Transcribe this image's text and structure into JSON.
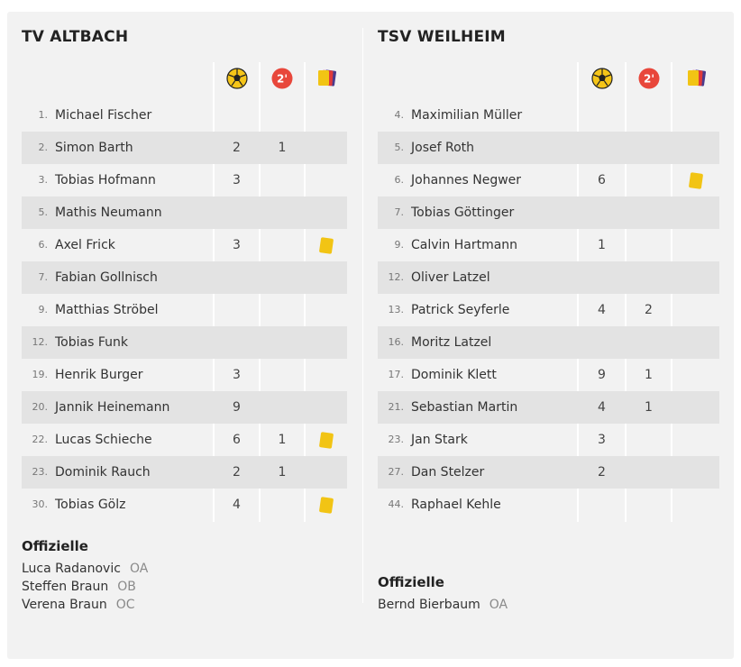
{
  "teams": [
    {
      "name": "TV ALTBACH",
      "players": [
        {
          "num": "1.",
          "name": "Michael Fischer",
          "goals": "",
          "two_min": "",
          "yellow": false
        },
        {
          "num": "2.",
          "name": "Simon Barth",
          "goals": "2",
          "two_min": "1",
          "yellow": false
        },
        {
          "num": "3.",
          "name": "Tobias Hofmann",
          "goals": "3",
          "two_min": "",
          "yellow": false
        },
        {
          "num": "5.",
          "name": "Mathis Neumann",
          "goals": "",
          "two_min": "",
          "yellow": false
        },
        {
          "num": "6.",
          "name": "Axel Frick",
          "goals": "3",
          "two_min": "",
          "yellow": true
        },
        {
          "num": "7.",
          "name": "Fabian Gollnisch",
          "goals": "",
          "two_min": "",
          "yellow": false
        },
        {
          "num": "9.",
          "name": "Matthias Ströbel",
          "goals": "",
          "two_min": "",
          "yellow": false
        },
        {
          "num": "12.",
          "name": "Tobias Funk",
          "goals": "",
          "two_min": "",
          "yellow": false
        },
        {
          "num": "19.",
          "name": "Henrik Burger",
          "goals": "3",
          "two_min": "",
          "yellow": false
        },
        {
          "num": "20.",
          "name": "Jannik Heinemann",
          "goals": "9",
          "two_min": "",
          "yellow": false
        },
        {
          "num": "22.",
          "name": "Lucas Schieche",
          "goals": "6",
          "two_min": "1",
          "yellow": true
        },
        {
          "num": "23.",
          "name": "Dominik Rauch",
          "goals": "2",
          "two_min": "1",
          "yellow": false
        },
        {
          "num": "30.",
          "name": "Tobias Gölz",
          "goals": "4",
          "two_min": "",
          "yellow": true
        }
      ],
      "officials_title": "Offizielle",
      "officials": [
        {
          "name": "Luca Radanovic",
          "role": "OA"
        },
        {
          "name": "Steffen Braun",
          "role": "OB"
        },
        {
          "name": "Verena Braun",
          "role": "OC"
        }
      ]
    },
    {
      "name": "TSV WEILHEIM",
      "players": [
        {
          "num": "4.",
          "name": "Maximilian Müller",
          "goals": "",
          "two_min": "",
          "yellow": false
        },
        {
          "num": "5.",
          "name": "Josef Roth",
          "goals": "",
          "two_min": "",
          "yellow": false
        },
        {
          "num": "6.",
          "name": "Johannes Negwer",
          "goals": "6",
          "two_min": "",
          "yellow": true
        },
        {
          "num": "7.",
          "name": "Tobias Göttinger",
          "goals": "",
          "two_min": "",
          "yellow": false
        },
        {
          "num": "9.",
          "name": "Calvin Hartmann",
          "goals": "1",
          "two_min": "",
          "yellow": false
        },
        {
          "num": "12.",
          "name": "Oliver Latzel",
          "goals": "",
          "two_min": "",
          "yellow": false
        },
        {
          "num": "13.",
          "name": "Patrick Seyferle",
          "goals": "4",
          "two_min": "2",
          "yellow": false
        },
        {
          "num": "16.",
          "name": "Moritz Latzel",
          "goals": "",
          "two_min": "",
          "yellow": false
        },
        {
          "num": "17.",
          "name": "Dominik Klett",
          "goals": "9",
          "two_min": "1",
          "yellow": false
        },
        {
          "num": "21.",
          "name": "Sebastian Martin",
          "goals": "4",
          "two_min": "1",
          "yellow": false
        },
        {
          "num": "23.",
          "name": "Jan Stark",
          "goals": "3",
          "two_min": "",
          "yellow": false
        },
        {
          "num": "27.",
          "name": "Dan Stelzer",
          "goals": "2",
          "two_min": "",
          "yellow": false
        },
        {
          "num": "44.",
          "name": "Raphael Kehle",
          "goals": "",
          "two_min": "",
          "yellow": false
        }
      ],
      "officials_title": "Offizielle",
      "officials": [
        {
          "name": "Bernd Bierbaum",
          "role": "OA"
        }
      ]
    }
  ],
  "header_icons": {
    "goals": "handball-icon",
    "two_min": "two-minute-penalty-icon",
    "cards": "cards-icon"
  },
  "two_min_icon_text": "2'",
  "colors": {
    "panel": "#f2f2f2",
    "alt_row": "#e3e3e3",
    "yellow_card": "#f2c414",
    "ball": "#f5c518",
    "penalty": "#e8473b",
    "red_card": "#e03a3a",
    "purple_card": "#4b3a8c"
  }
}
